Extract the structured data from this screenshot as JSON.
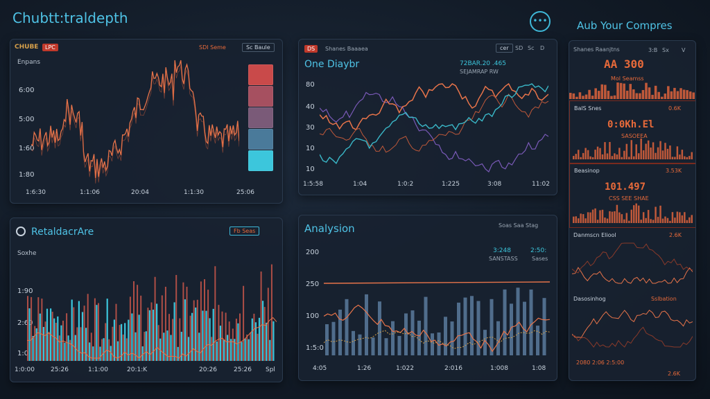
{
  "app": {
    "title": "Chubtt:traldepth",
    "right_title": "Aub Your Compres",
    "menu_icon": "dots-icon",
    "menu_label": "•••"
  },
  "panel1": {
    "tag1": "CHUBE",
    "tag2": "LPC",
    "btn1": "SDI Seme",
    "btn2": "Sc Baule",
    "series_label": "Enpans",
    "yticks": [
      "6:00",
      "5:00",
      "1:60",
      "1:80"
    ],
    "xticks": [
      "1:6:30",
      "1:1:06",
      "20:04",
      "1:1:30",
      "25:06"
    ],
    "swatches": [
      "#c94a4a",
      "#a65060",
      "#7a5a78",
      "#4a7a9a",
      "#3cc6dc"
    ]
  },
  "panel2": {
    "tag": "DS",
    "head_small": "Shanes Baaaea",
    "title": "One Diaybr",
    "stat": "72BAR.20 .465",
    "stat2": "SEJAMRAP RW",
    "ctrls": [
      "cer",
      "SD",
      "Sc",
      "D"
    ],
    "yticks": [
      "80",
      "40",
      "30",
      "10",
      "10"
    ],
    "xticks": [
      "1:5:58",
      "1:04",
      "1:0:2",
      "1:225",
      "3:08",
      "11:02"
    ]
  },
  "panel3": {
    "title": "RetaldacrAre",
    "btn": "Fb Seas",
    "series_label": "Soxhe",
    "yticks": [
      "1:90",
      "2:60",
      "1:0"
    ],
    "xticks": [
      "1:0:00",
      "25:26",
      "1:1:00",
      "20:1:K",
      "20:26",
      "25:26",
      "Spl"
    ]
  },
  "panel4": {
    "title": "Analysion",
    "head_small": "Soas Saa Stag",
    "stat1": "3:248",
    "stat1b": "SANSTASS",
    "stat2": "2:50:",
    "stat2b": "Sases",
    "yticks": [
      "200",
      "250",
      "100",
      "1:5:0"
    ],
    "xticks": [
      "4:05",
      "1:26",
      "1:022",
      "2:016",
      "1:008",
      "1:08"
    ]
  },
  "right": {
    "top_small": "Shanes Raanjtns",
    "top_num": "AA 300",
    "top_sub": "Mol Seamss",
    "top_ctrls": [
      "3:B",
      "Sx",
      "V"
    ],
    "cards": [
      {
        "label": "BalS Snes",
        "value_label": "0.6K",
        "big": "0:0Kh.El",
        "sub": "SASOEEA"
      },
      {
        "label": "Beasinop",
        "value_label": "3.53K",
        "big": "101.497",
        "sub": "CSS SEE SHAE"
      },
      {
        "label": "Danmscn Eliool",
        "value_label": "2.6K"
      },
      {
        "label": "Dasosinhog",
        "value_label": "Sslbation"
      }
    ],
    "footer_left": "2080 2:06 2:5:00",
    "footer_right": "2.6K"
  }
}
